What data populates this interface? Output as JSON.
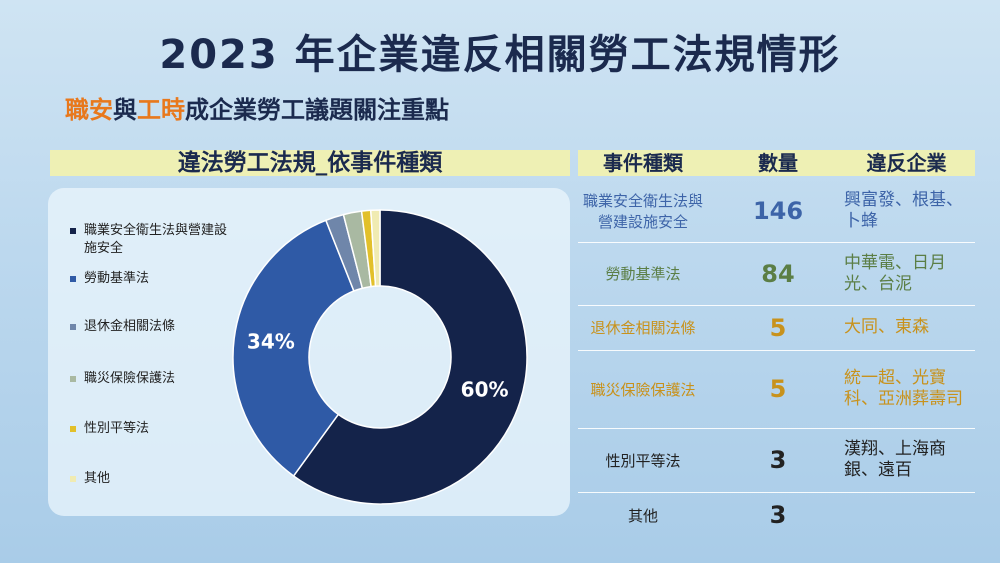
{
  "title": "2023 年企業違反相關勞工法規情形",
  "subtitle": [
    {
      "text": "職安",
      "color": "#e8781c"
    },
    {
      "text": "與",
      "color": "#1b2a4e"
    },
    {
      "text": "工時",
      "color": "#e8781c"
    },
    {
      "text": "成企業勞工議題關注重點",
      "color": "#1b2a4e"
    }
  ],
  "chart_data": {
    "type": "pie",
    "title": "違法勞工法規_依事件種類",
    "categories": [
      "職業安全衛生法與營建設施安全",
      "勞動基準法",
      "退休金相關法條",
      "職災保險保護法",
      "性別平等法",
      "其他"
    ],
    "values": [
      60,
      34,
      2,
      2,
      1,
      1
    ],
    "value_labels": [
      "60%",
      "34%",
      null,
      null,
      null,
      null
    ],
    "colors": [
      "#14234a",
      "#2f5aa6",
      "#6f86aa",
      "#a9b9a2",
      "#e2c02a",
      "#f0ebb2"
    ]
  },
  "table": {
    "header": [
      "事件種類",
      "數量",
      "違反企業"
    ],
    "rows": [
      {
        "cells": [
          "職業安全衛生法與營建設施安全",
          146,
          "興富發、根基、卜蜂"
        ],
        "color": "#3d64a8"
      },
      {
        "cells": [
          "勞動基準法",
          84,
          "中華電、日月光、台泥"
        ],
        "color": "#5b7e45"
      },
      {
        "cells": [
          "退休金相關法條",
          5,
          "大同、東森"
        ],
        "color": "#c8921c"
      },
      {
        "cells": [
          "職災保險保護法",
          5,
          "統一超、光寶科、亞洲葬壽司"
        ],
        "color": "#c8921c"
      },
      {
        "cells": [
          "性別平等法",
          3,
          "漢翔、上海商銀、遠百"
        ],
        "color": "#222222"
      },
      {
        "cells": [
          "其他",
          3,
          ""
        ],
        "color": "#222222"
      }
    ]
  }
}
